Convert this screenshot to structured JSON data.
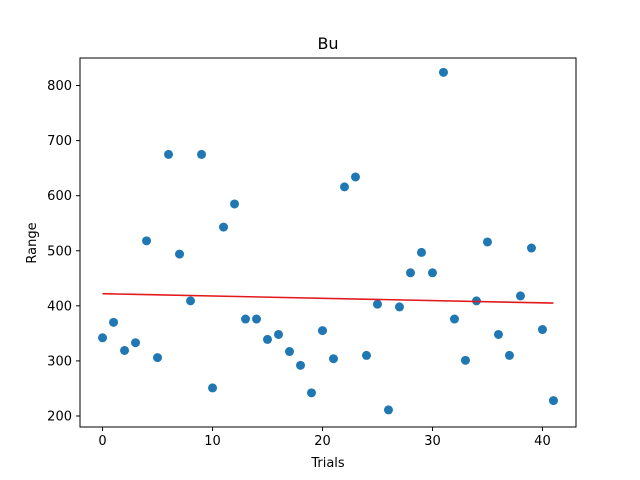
{
  "chart_data": {
    "type": "scatter",
    "title": "Bu",
    "xlabel": "Trials",
    "ylabel": "Range",
    "xlim": [
      -2.05,
      43.05
    ],
    "ylim": [
      180,
      850
    ],
    "xticks": [
      0,
      10,
      20,
      30,
      40
    ],
    "yticks": [
      200,
      300,
      400,
      500,
      600,
      700,
      800
    ],
    "grid": false,
    "point_color": "#1f77b4",
    "fit_color": "#e31a1c",
    "x": [
      0,
      1,
      2,
      3,
      4,
      5,
      6,
      7,
      8,
      9,
      10,
      11,
      12,
      13,
      14,
      15,
      16,
      17,
      18,
      19,
      20,
      21,
      22,
      23,
      24,
      25,
      26,
      27,
      28,
      29,
      30,
      31,
      32,
      33,
      34,
      35,
      36,
      37,
      38,
      39,
      40,
      41
    ],
    "y": [
      342,
      370,
      319,
      333,
      518,
      306,
      675,
      494,
      409,
      675,
      251,
      543,
      585,
      376,
      376,
      339,
      348,
      317,
      292,
      242,
      355,
      304,
      616,
      634,
      310,
      403,
      211,
      398,
      460,
      497,
      460,
      824,
      376,
      301,
      409,
      516,
      348,
      310,
      418,
      505,
      357,
      228
    ],
    "fit_line": {
      "x": [
        0,
        41
      ],
      "y": [
        422,
        405
      ]
    }
  }
}
